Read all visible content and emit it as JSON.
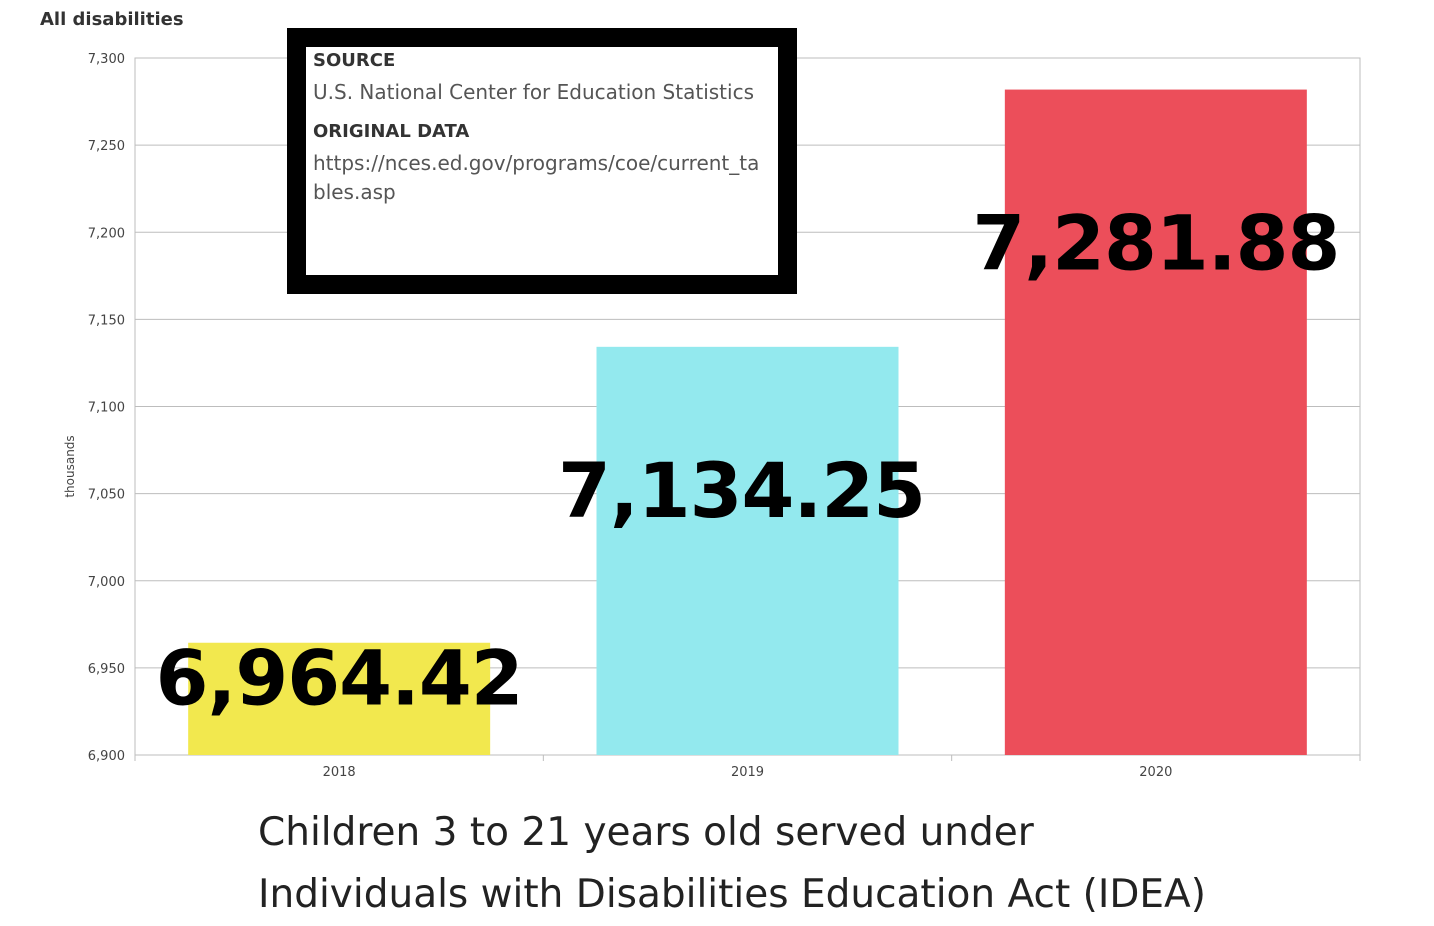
{
  "corner_title": "All disabilities",
  "source_box": {
    "source_label": "SOURCE",
    "source_text": "U.S. National Center for Education Statistics",
    "original_label": "ORIGINAL DATA",
    "original_url": "https://nces.ed.gov/programs/coe/current_tables.asp"
  },
  "caption": {
    "line1": "Children 3 to 21 years old served under",
    "line2": "Individuals with Disabilities Education Act (IDEA)"
  },
  "chart_data": {
    "type": "bar",
    "categories": [
      "2018",
      "2019",
      "2020"
    ],
    "values": [
      6964.42,
      7134.25,
      7281.88
    ],
    "value_labels": [
      "6,964.42",
      "7,134.25",
      "7,281.88"
    ],
    "bar_colors": [
      "#f2e84e",
      "#93e9ee",
      "#ec4e5a"
    ],
    "ylabel": "thousands",
    "ylim": [
      6900,
      7300
    ],
    "yticks": [
      6900,
      6950,
      7000,
      7050,
      7100,
      7150,
      7200,
      7250,
      7300
    ],
    "ytick_labels": [
      "6,900",
      "6,950",
      "7,000",
      "7,050",
      "7,100",
      "7,150",
      "7,200",
      "7,250",
      "7,300"
    ],
    "grid": true,
    "legend": "none"
  }
}
